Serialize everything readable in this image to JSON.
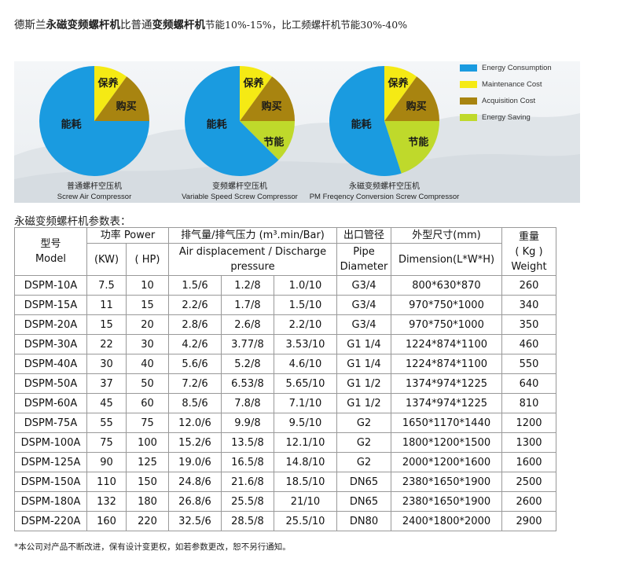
{
  "headline": {
    "p1": "德斯兰",
    "p2": "永磁变频螺杆机",
    "p3": "比普通",
    "p4": "变频螺杆机",
    "p5": "节能10%-15%，比工频螺杆机节能30%-40%"
  },
  "legend": [
    {
      "label": "Energy Consumption",
      "color": "#1a9be0"
    },
    {
      "label": "Maintenance Cost",
      "color": "#f5ea14"
    },
    {
      "label": "Acquisition Cost",
      "color": "#a88410"
    },
    {
      "label": "Energy Saving",
      "color": "#bfd92b"
    }
  ],
  "chart_data": [
    {
      "type": "pie",
      "slices": [
        {
          "label": "能耗",
          "color": "#1a9be0",
          "value": 0.75
        },
        {
          "label": "保养",
          "color": "#f5ea14",
          "value": 0.1
        },
        {
          "label": "购买",
          "color": "#a88410",
          "value": 0.15
        }
      ],
      "caption_cn": "普通螺杆空压机",
      "caption_en": "Screw Air Compressor"
    },
    {
      "type": "pie",
      "slices": [
        {
          "label": "能耗",
          "color": "#1a9be0",
          "value": 0.625
        },
        {
          "label": "保养",
          "color": "#f5ea14",
          "value": 0.1
        },
        {
          "label": "购买",
          "color": "#a88410",
          "value": 0.15
        },
        {
          "label": "节能",
          "color": "#bfd92b",
          "value": 0.125
        }
      ],
      "caption_cn": "变频螺杆空压机",
      "caption_en": "Variable Speed Screw Compressor"
    },
    {
      "type": "pie",
      "slices": [
        {
          "label": "能耗",
          "color": "#1a9be0",
          "value": 0.55
        },
        {
          "label": "保养",
          "color": "#f5ea14",
          "value": 0.1
        },
        {
          "label": "购买",
          "color": "#a88410",
          "value": 0.15
        },
        {
          "label": "节能",
          "color": "#bfd92b",
          "value": 0.2
        }
      ],
      "caption_cn": "永磁变频螺杆空压机",
      "caption_en": "PM Freqency Conversion Screw Compressor"
    }
  ],
  "table_title": "永磁变频螺杆机参数表：",
  "table": {
    "h_model_cn": "型号",
    "h_model_en": "Model",
    "h_power": "功率 Power",
    "h_kw": "(KW)",
    "h_hp": "( HP)",
    "h_air_cn": "排气量/排气压力 (m³.min/Bar)",
    "h_air_en1": "Air displacement / Discharge",
    "h_air_en2": "pressure",
    "h_pipe_cn": "出口管径",
    "h_pipe_en1": "Pipe",
    "h_pipe_en2": "Diameter",
    "h_dim_cn": "外型尺寸(mm)",
    "h_dim_en": "Dimension(L*W*H)",
    "h_wt_cn": "重量",
    "h_wt_en1": "( Kg )",
    "h_wt_en2": "Weight",
    "rows": [
      [
        "DSPM-10A",
        "7.5",
        "10",
        "1.5/6",
        "1.2/8",
        "1.0/10",
        "G3/4",
        "800*630*870",
        "260"
      ],
      [
        "DSPM-15A",
        "11",
        "15",
        "2.2/6",
        "1.7/8",
        "1.5/10",
        "G3/4",
        "970*750*1000",
        "340"
      ],
      [
        "DSPM-20A",
        "15",
        "20",
        "2.8/6",
        "2.6/8",
        "2.2/10",
        "G3/4",
        "970*750*1000",
        "350"
      ],
      [
        "DSPM-30A",
        "22",
        "30",
        "4.2/6",
        "3.77/8",
        "3.53/10",
        "G1 1/4",
        "1224*874*1100",
        "460"
      ],
      [
        "DSPM-40A",
        "30",
        "40",
        "5.6/6",
        "5.2/8",
        "4.6/10",
        "G1 1/4",
        "1224*874*1100",
        "550"
      ],
      [
        "DSPM-50A",
        "37",
        "50",
        "7.2/6",
        "6.53/8",
        "5.65/10",
        "G1 1/2",
        "1374*974*1225",
        "640"
      ],
      [
        "DSPM-60A",
        "45",
        "60",
        "8.5/6",
        "7.8/8",
        "7.1/10",
        "G1 1/2",
        "1374*974*1225",
        "810"
      ],
      [
        "DSPM-75A",
        "55",
        "75",
        "12.0/6",
        "9.9/8",
        "9.5/10",
        "G2",
        "1650*1170*1440",
        "1200"
      ],
      [
        "DSPM-100A",
        "75",
        "100",
        "15.2/6",
        "13.5/8",
        "12.1/10",
        "G2",
        "1800*1200*1500",
        "1300"
      ],
      [
        "DSPM-125A",
        "90",
        "125",
        "19.0/6",
        "16.5/8",
        "14.8/10",
        "G2",
        "2000*1200*1600",
        "1600"
      ],
      [
        "DSPM-150A",
        "110",
        "150",
        "24.8/6",
        "21.6/8",
        "18.5/10",
        "DN65",
        "2380*1650*1900",
        "2500"
      ],
      [
        "DSPM-180A",
        "132",
        "180",
        "26.8/6",
        "25.5/8",
        "21/10",
        "DN65",
        "2380*1650*1900",
        "2600"
      ],
      [
        "DSPM-220A",
        "160",
        "220",
        "32.5/6",
        "28.5/8",
        "25.5/10",
        "DN80",
        "2400*1800*2000",
        "2900"
      ]
    ]
  },
  "footnote": "*本公司对产品不断改进，保有设计变更权，如若参数更改，恕不另行通知。"
}
